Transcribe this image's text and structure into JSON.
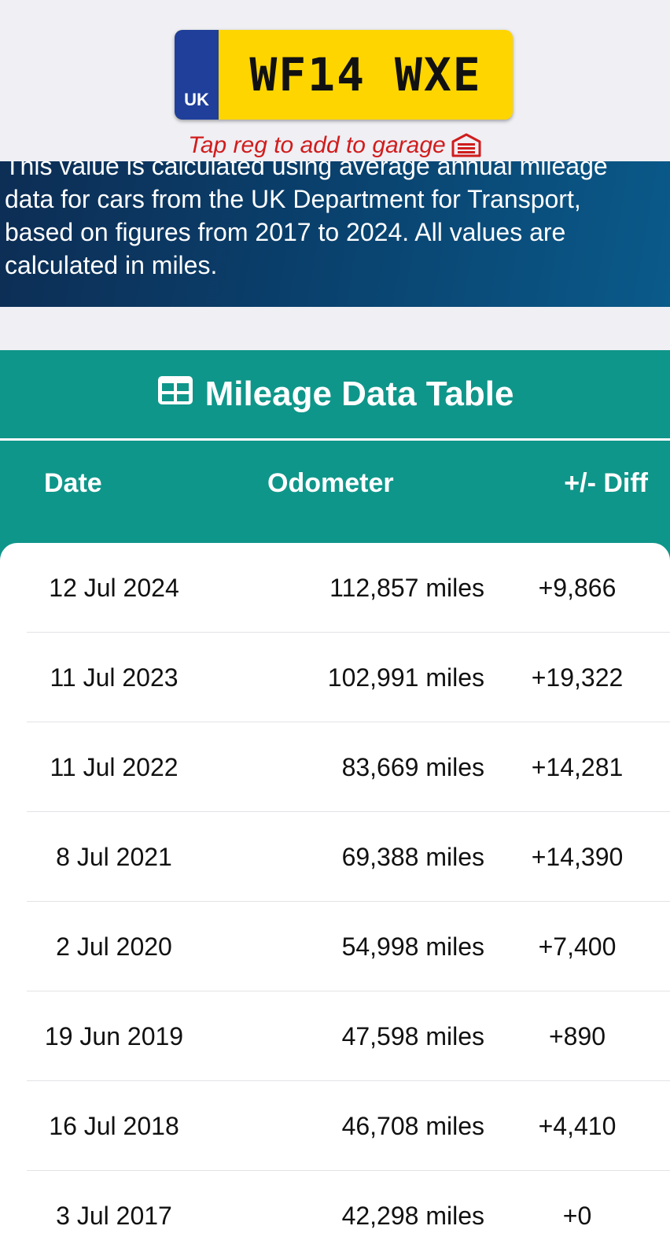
{
  "plate": {
    "country": "UK",
    "registration": "WF14 WXE",
    "background_color": "#ffd500",
    "flag_color": "#1f3f9a"
  },
  "hint": {
    "text": "Tap reg to add to garage",
    "icon": "garage-icon",
    "color": "#d01c1c"
  },
  "info_panel": {
    "lines": [
      "This value is calculated using average annual mileage",
      "data for cars from the UK Department for Transport,",
      "based on figures from 2017 to 2024. All values are",
      "calculated in miles."
    ]
  },
  "mileage": {
    "title": "Mileage Data Table",
    "title_icon": "table-icon",
    "accent_color": "#0f968a",
    "columns": [
      "Date",
      "Odometer",
      "+/- Diff"
    ],
    "rows": [
      {
        "date": "12 Jul 2024",
        "odometer": "112,857 miles",
        "diff": "+9,866"
      },
      {
        "date": "11 Jul 2023",
        "odometer": "102,991 miles",
        "diff": "+19,322"
      },
      {
        "date": "11 Jul 2022",
        "odometer": "83,669 miles",
        "diff": "+14,281"
      },
      {
        "date": "8 Jul 2021",
        "odometer": "69,388 miles",
        "diff": "+14,390"
      },
      {
        "date": "2 Jul 2020",
        "odometer": "54,998 miles",
        "diff": "+7,400"
      },
      {
        "date": "19 Jun 2019",
        "odometer": "47,598 miles",
        "diff": "+890"
      },
      {
        "date": "16 Jul 2018",
        "odometer": "46,708 miles",
        "diff": "+4,410"
      },
      {
        "date": "3 Jul 2017",
        "odometer": "42,298 miles",
        "diff": "+0"
      }
    ]
  }
}
